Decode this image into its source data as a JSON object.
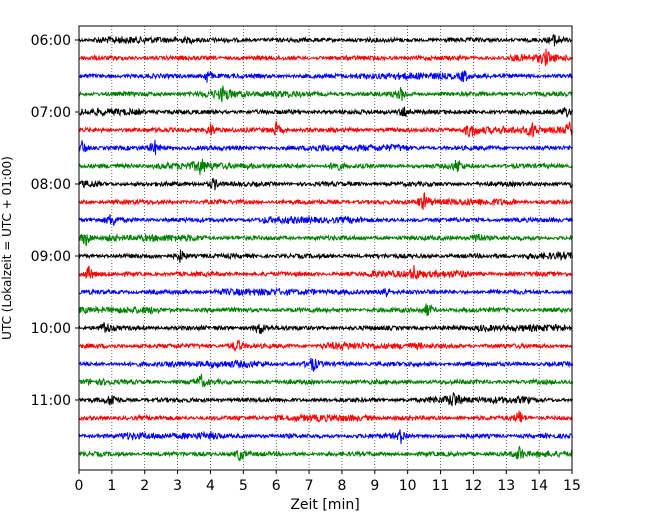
{
  "chart_data": {
    "type": "line",
    "title": "",
    "xlabel": "Zeit  [min]",
    "ylabel": "UTC (Lokalzeit = UTC + 01:00)",
    "xlim": [
      0,
      15
    ],
    "x_ticks": [
      "0",
      "1",
      "2",
      "3",
      "4",
      "5",
      "6",
      "7",
      "8",
      "9",
      "10",
      "11",
      "12",
      "13",
      "14",
      "15"
    ],
    "y_ticks": [
      "06:00",
      "07:00",
      "08:00",
      "09:00",
      "10:00",
      "11:00"
    ],
    "grid_x": true,
    "grid_style": "dotted",
    "line_colors": [
      "#000000",
      "#ff0000",
      "#0000ff",
      "#008000"
    ],
    "trace_interval_minutes": 15,
    "trace_start_times": [
      "06:00",
      "06:15",
      "06:30",
      "06:45",
      "07:00",
      "07:15",
      "07:30",
      "07:45",
      "08:00",
      "08:15",
      "08:30",
      "08:45",
      "09:00",
      "09:15",
      "09:30",
      "09:45",
      "10:00",
      "10:15",
      "10:30",
      "10:45",
      "11:00",
      "11:15",
      "11:30",
      "11:45"
    ],
    "events": [
      {
        "trace": 0,
        "t": 14.5
      },
      {
        "trace": 1,
        "t": 14.2
      },
      {
        "trace": 2,
        "t": 3.9
      },
      {
        "trace": 2,
        "t": 11.7
      },
      {
        "trace": 3,
        "t": 4.4
      },
      {
        "trace": 3,
        "t": 9.8
      },
      {
        "trace": 4,
        "t": 9.9
      },
      {
        "trace": 4,
        "t": 14.8
      },
      {
        "trace": 5,
        "t": 4.0
      },
      {
        "trace": 5,
        "t": 6.0
      },
      {
        "trace": 5,
        "t": 11.9
      },
      {
        "trace": 5,
        "t": 13.8
      },
      {
        "trace": 5,
        "t": 14.9
      },
      {
        "trace": 6,
        "t": 0.1
      },
      {
        "trace": 6,
        "t": 2.3
      },
      {
        "trace": 7,
        "t": 3.7
      },
      {
        "trace": 7,
        "t": 7.8
      },
      {
        "trace": 7,
        "t": 11.5
      },
      {
        "trace": 8,
        "t": 4.1
      },
      {
        "trace": 9,
        "t": 10.5
      },
      {
        "trace": 10,
        "t": 1.0
      },
      {
        "trace": 11,
        "t": 0.2
      },
      {
        "trace": 11,
        "t": 12.1
      },
      {
        "trace": 12,
        "t": 3.1
      },
      {
        "trace": 13,
        "t": 0.3
      },
      {
        "trace": 13,
        "t": 10.2
      },
      {
        "trace": 14,
        "t": 9.3
      },
      {
        "trace": 15,
        "t": 10.6
      },
      {
        "trace": 16,
        "t": 0.8
      },
      {
        "trace": 16,
        "t": 5.5
      },
      {
        "trace": 17,
        "t": 4.8
      },
      {
        "trace": 18,
        "t": 7.1
      },
      {
        "trace": 19,
        "t": 3.7
      },
      {
        "trace": 20,
        "t": 1.0
      },
      {
        "trace": 20,
        "t": 11.4
      },
      {
        "trace": 21,
        "t": 13.4
      },
      {
        "trace": 22,
        "t": 9.8
      },
      {
        "trace": 23,
        "t": 4.9
      },
      {
        "trace": 23,
        "t": 13.4
      }
    ]
  }
}
